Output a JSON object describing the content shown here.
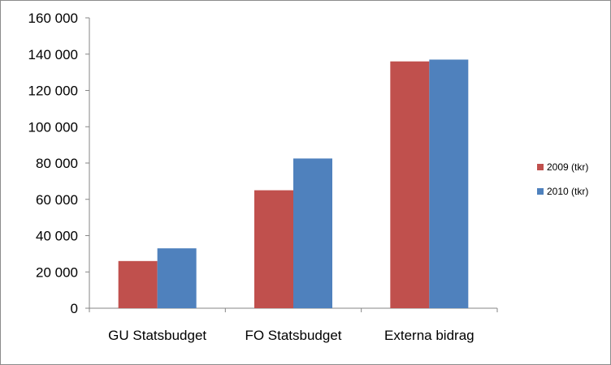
{
  "chart_data": {
    "type": "bar",
    "categories": [
      "GU Statsbudget",
      "FO Statsbudget",
      "Externa bidrag"
    ],
    "series": [
      {
        "name": "2009 (tkr)",
        "values": [
          26000,
          65000,
          136000
        ],
        "color": "#c0504d"
      },
      {
        "name": "2010 (tkr)",
        "values": [
          33000,
          82500,
          137000
        ],
        "color": "#4f81bd"
      }
    ],
    "yticks": [
      0,
      20000,
      40000,
      60000,
      80000,
      100000,
      120000,
      140000,
      160000
    ],
    "ytick_labels": [
      "0",
      "20 000",
      "40 000",
      "60 000",
      "80 000",
      "100 000",
      "120 000",
      "140 000",
      "160 000"
    ],
    "ylim": [
      0,
      160000
    ],
    "grid": false,
    "legend_position": "right"
  }
}
